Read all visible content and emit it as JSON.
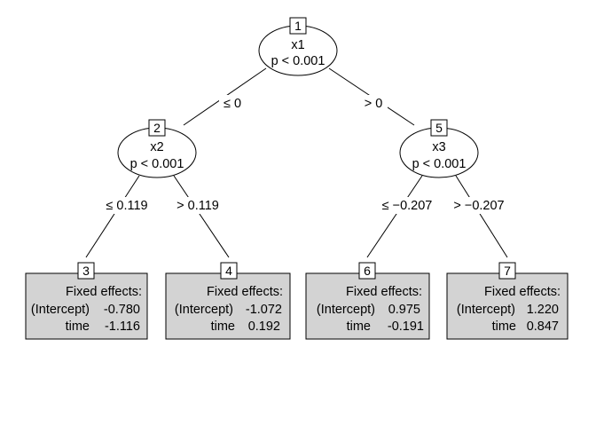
{
  "nodes": {
    "n1": {
      "id": "1",
      "variable": "x1",
      "p": "p < 0.001"
    },
    "n2": {
      "id": "2",
      "variable": "x2",
      "p": "p < 0.001"
    },
    "n5": {
      "id": "5",
      "variable": "x3",
      "p": "p < 0.001"
    }
  },
  "edges": {
    "e1_2": "≤ 0",
    "e1_5": "> 0",
    "e2_3": "≤ 0.119",
    "e2_4": "> 0.119",
    "e5_6": "≤ −0.207",
    "e5_7": "> −0.207"
  },
  "leaves": {
    "n3": {
      "id": "3",
      "heading": "Fixed effects:",
      "intercept_label": "(Intercept)",
      "intercept_value": "-0.780",
      "time_label": "time",
      "time_value": "-1.116"
    },
    "n4": {
      "id": "4",
      "heading": "Fixed effects:",
      "intercept_label": "(Intercept)",
      "intercept_value": "-1.072",
      "time_label": "time",
      "time_value": "0.192"
    },
    "n6": {
      "id": "6",
      "heading": "Fixed effects:",
      "intercept_label": "(Intercept)",
      "intercept_value": "0.975",
      "time_label": "time",
      "time_value": "-0.191"
    },
    "n7": {
      "id": "7",
      "heading": "Fixed effects:",
      "intercept_label": "(Intercept)",
      "intercept_value": "1.220",
      "time_label": "time",
      "time_value": "0.847"
    }
  },
  "colors": {
    "leaf_fill": "#d3d3d3",
    "stroke": "#000000",
    "background": "#ffffff"
  }
}
